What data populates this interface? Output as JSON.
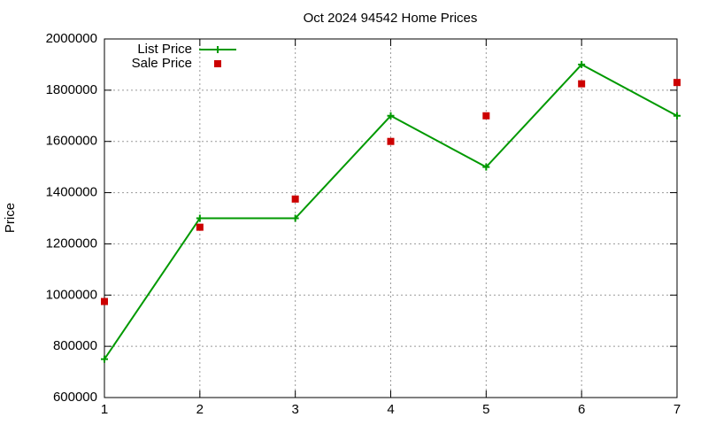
{
  "chart_data": {
    "type": "line",
    "title": "Oct 2024 94542 Home Prices",
    "y_label": "Price",
    "x": [
      1,
      2,
      3,
      4,
      5,
      6,
      7
    ],
    "series": [
      {
        "name": "List Price",
        "color": "#009900",
        "marker": "plus",
        "line": true,
        "values": [
          750000,
          1300000,
          1300000,
          1700000,
          1500000,
          1900000,
          1700000
        ]
      },
      {
        "name": "Sale Price",
        "color": "#cc0000",
        "marker": "square",
        "line": false,
        "values": [
          975000,
          1265000,
          1375000,
          1600000,
          1700000,
          1825000,
          1830000
        ]
      }
    ],
    "xlim": [
      1,
      7
    ],
    "xticks": [
      1,
      2,
      3,
      4,
      5,
      6,
      7
    ],
    "ylim": [
      600000,
      2000000
    ],
    "yticks": [
      600000,
      800000,
      1000000,
      1200000,
      1400000,
      1600000,
      1800000,
      2000000
    ],
    "grid": true,
    "legend": "top-left"
  }
}
